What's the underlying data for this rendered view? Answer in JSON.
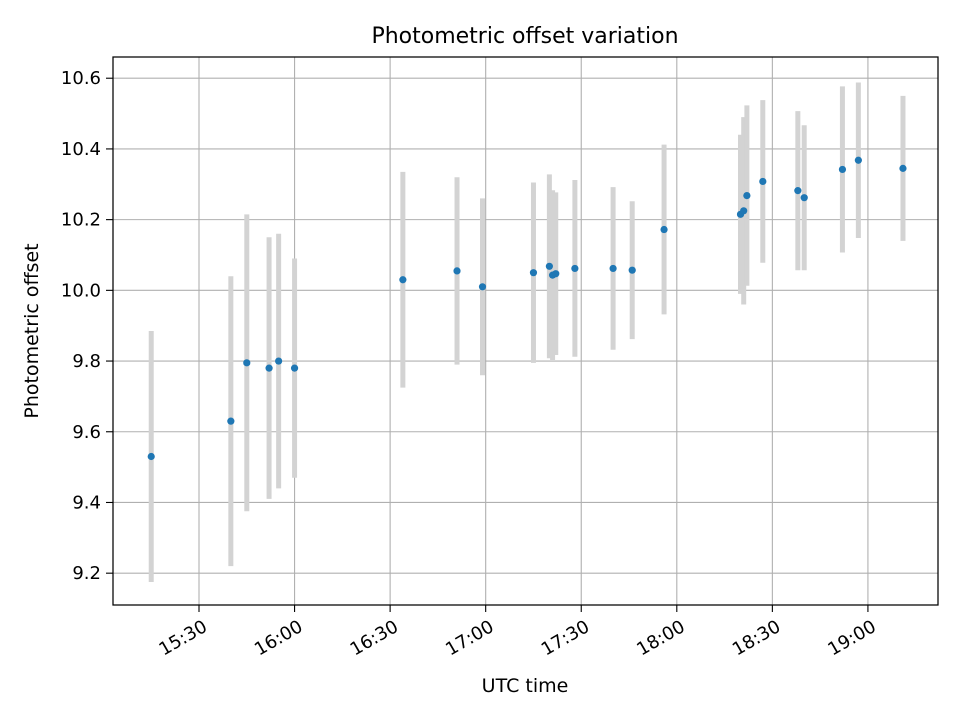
{
  "chart_data": {
    "type": "scatter",
    "title": "Photometric offset variation",
    "xlabel": "UTC time",
    "ylabel": "Photometric offset",
    "xlim": [
      "15:03",
      "19:22"
    ],
    "ylim": [
      9.11,
      10.66
    ],
    "x_ticks": [
      "15:30",
      "16:00",
      "16:30",
      "17:00",
      "17:30",
      "18:00",
      "18:30",
      "19:00"
    ],
    "y_ticks": [
      9.2,
      9.4,
      9.6,
      9.8,
      10.0,
      10.2,
      10.4,
      10.6
    ],
    "y_tick_labels": [
      "9.2",
      "9.4",
      "9.6",
      "9.8",
      "10.0",
      "10.2",
      "10.4",
      "10.6"
    ],
    "grid": true,
    "colors": {
      "marker": "#1f77b4",
      "errorbar": "#d3d3d3",
      "grid": "#b0b0b0"
    },
    "points": [
      {
        "x": "15:15",
        "y": 9.53,
        "err": 0.355
      },
      {
        "x": "15:40",
        "y": 9.63,
        "err": 0.41
      },
      {
        "x": "15:45",
        "y": 9.795,
        "err": 0.42
      },
      {
        "x": "15:52",
        "y": 9.78,
        "err": 0.37
      },
      {
        "x": "15:55",
        "y": 9.8,
        "err": 0.36
      },
      {
        "x": "16:00",
        "y": 9.78,
        "err": 0.31
      },
      {
        "x": "16:34",
        "y": 10.03,
        "err": 0.305
      },
      {
        "x": "16:51",
        "y": 10.055,
        "err": 0.265
      },
      {
        "x": "16:59",
        "y": 10.01,
        "err": 0.25
      },
      {
        "x": "17:15",
        "y": 10.05,
        "err": 0.255
      },
      {
        "x": "17:20",
        "y": 10.068,
        "err": 0.26
      },
      {
        "x": "17:21",
        "y": 10.043,
        "err": 0.24
      },
      {
        "x": "17:22",
        "y": 10.047,
        "err": 0.23
      },
      {
        "x": "17:28",
        "y": 10.062,
        "err": 0.25
      },
      {
        "x": "17:40",
        "y": 10.062,
        "err": 0.23
      },
      {
        "x": "17:46",
        "y": 10.057,
        "err": 0.195
      },
      {
        "x": "17:56",
        "y": 10.172,
        "err": 0.24
      },
      {
        "x": "18:20",
        "y": 10.215,
        "err": 0.225
      },
      {
        "x": "18:21",
        "y": 10.225,
        "err": 0.265
      },
      {
        "x": "18:22",
        "y": 10.268,
        "err": 0.255
      },
      {
        "x": "18:27",
        "y": 10.308,
        "err": 0.23
      },
      {
        "x": "18:38",
        "y": 10.282,
        "err": 0.225
      },
      {
        "x": "18:40",
        "y": 10.262,
        "err": 0.205
      },
      {
        "x": "18:52",
        "y": 10.342,
        "err": 0.235
      },
      {
        "x": "18:57",
        "y": 10.368,
        "err": 0.22
      },
      {
        "x": "19:11",
        "y": 10.345,
        "err": 0.205
      }
    ]
  }
}
